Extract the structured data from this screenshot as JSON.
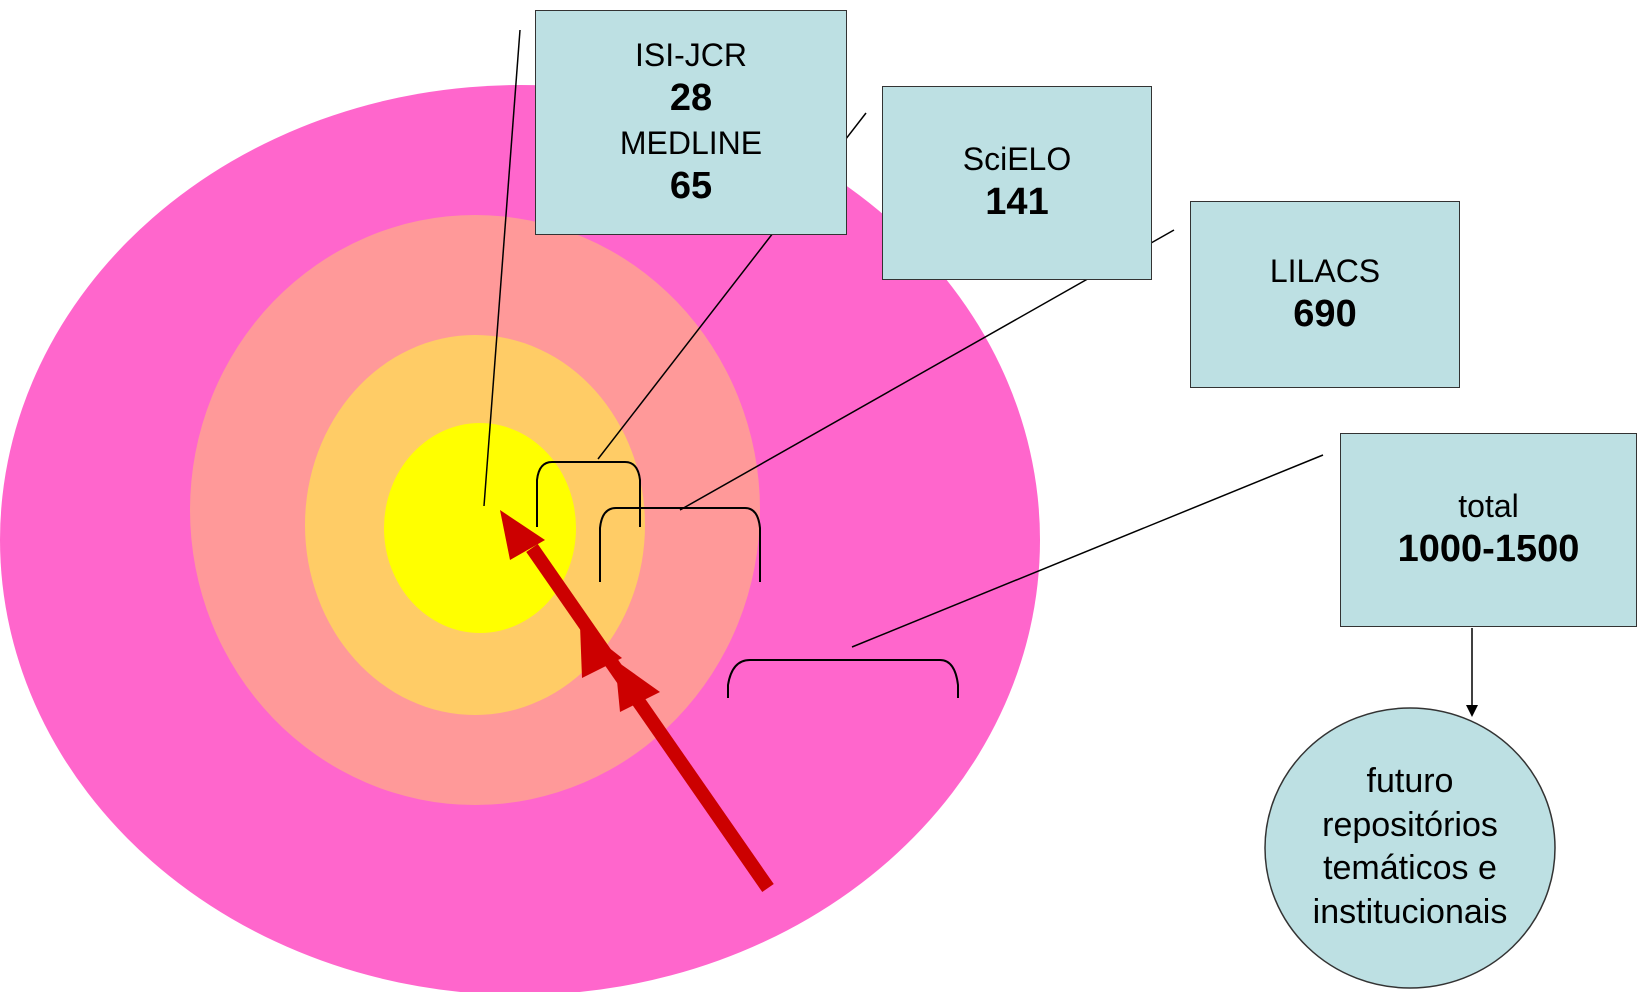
{
  "colors": {
    "outer_ring": "#ff66cc",
    "second_ring": "#ff9999",
    "third_ring": "#ffcc66",
    "core": "#ffff00",
    "box_fill": "#bde0e3",
    "arrow": "#cc0000"
  },
  "boxes": {
    "isi": {
      "label1": "ISI-JCR",
      "value1": "28",
      "label2": "MEDLINE",
      "value2": "65"
    },
    "scielo": {
      "label": "SciELO",
      "value": "141"
    },
    "lilacs": {
      "label": "LILACS",
      "value": "690"
    },
    "total": {
      "label": "total",
      "value": "1000-1500"
    }
  },
  "future": {
    "lines": [
      "futuro",
      "repositórios",
      "temáticos e",
      "institucionais"
    ]
  }
}
